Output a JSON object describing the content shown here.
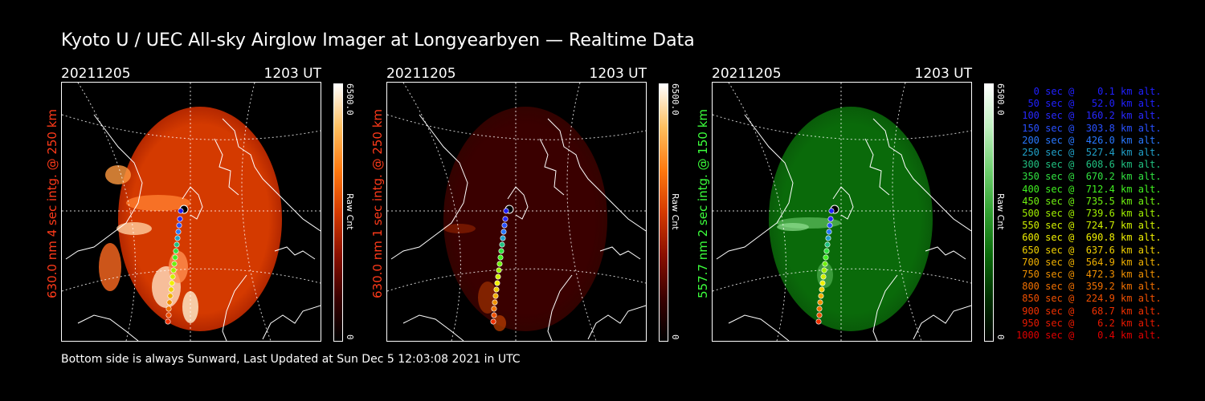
{
  "title": "Kyoto U / UEC All-sky Airglow Imager at Longyearbyen — Realtime Data",
  "footer": "Bottom side is always Sunward, Last Updated at Sun Dec  5 12:03:08 2021 in UTC",
  "panels": [
    {
      "date": "20211205",
      "time": "1203 UT",
      "label": "630.0 nm 4 sec intg. @ 250 km",
      "label_color": "#ff3a1a",
      "cbar_max": "6500.0",
      "cbar_unit": "Raw Cnt",
      "cbar_min": "0",
      "colormap": [
        "#000000",
        "#3a0000",
        "#8a1000",
        "#d43a00",
        "#ff7a10",
        "#ffc060",
        "#ffffff"
      ]
    },
    {
      "date": "20211205",
      "time": "1203 UT",
      "label": "630.0 nm 1 sec intg. @ 250 km",
      "label_color": "#ff3a1a",
      "cbar_max": "6500.0",
      "cbar_unit": "Raw Cnt",
      "cbar_min": "0",
      "colormap": [
        "#000000",
        "#3a0000",
        "#8a1000",
        "#d43a00",
        "#ff7a10",
        "#ffc060",
        "#ffffff"
      ]
    },
    {
      "date": "20211205",
      "time": "1203 UT",
      "label": "557.7 nm 2 sec intg. @ 150 km",
      "label_color": "#3cff3c",
      "cbar_max": "6500.0",
      "cbar_unit": "Raw Cnt",
      "cbar_min": "0",
      "colormap": [
        "#000000",
        "#003000",
        "#0a6a0a",
        "#30a030",
        "#70d070",
        "#c0f0c0",
        "#ffffff"
      ]
    }
  ],
  "legend": [
    {
      "text": "   0 sec @    0.1 km alt.",
      "color": "#2020ff"
    },
    {
      "text": "  50 sec @   52.0 km alt.",
      "color": "#2020ff"
    },
    {
      "text": " 100 sec @  160.2 km alt.",
      "color": "#2828ff"
    },
    {
      "text": " 150 sec @  303.8 km alt.",
      "color": "#2850ff"
    },
    {
      "text": " 200 sec @  426.0 km alt.",
      "color": "#2878ff"
    },
    {
      "text": " 250 sec @  527.4 km alt.",
      "color": "#20a0c8"
    },
    {
      "text": " 300 sec @  608.6 km alt.",
      "color": "#20c080"
    },
    {
      "text": " 350 sec @  670.2 km alt.",
      "color": "#30e040"
    },
    {
      "text": " 400 sec @  712.4 km alt.",
      "color": "#40f020"
    },
    {
      "text": " 450 sec @  735.5 km alt.",
      "color": "#70f010"
    },
    {
      "text": " 500 sec @  739.6 km alt.",
      "color": "#a0f000"
    },
    {
      "text": " 550 sec @  724.7 km alt.",
      "color": "#d0f000"
    },
    {
      "text": " 600 sec @  690.8 km alt.",
      "color": "#f0f000"
    },
    {
      "text": " 650 sec @  637.6 km alt.",
      "color": "#f0d000"
    },
    {
      "text": " 700 sec @  564.9 km alt.",
      "color": "#f0b000"
    },
    {
      "text": " 750 sec @  472.3 km alt.",
      "color": "#f09000"
    },
    {
      "text": " 800 sec @  359.2 km alt.",
      "color": "#f07000"
    },
    {
      "text": " 850 sec @  224.9 km alt.",
      "color": "#f05000"
    },
    {
      "text": " 900 sec @   68.7 km alt.",
      "color": "#f03000"
    },
    {
      "text": " 950 sec @    6.2 km alt.",
      "color": "#e81800"
    },
    {
      "text": "1000 sec @    0.4 km alt.",
      "color": "#e00000"
    }
  ]
}
